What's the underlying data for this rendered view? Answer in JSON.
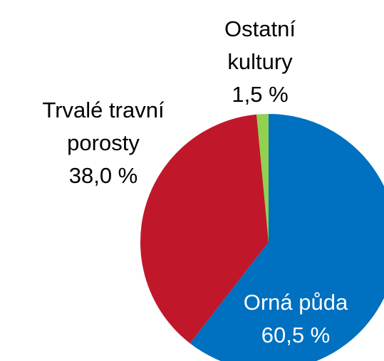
{
  "chart_data": {
    "type": "pie",
    "categories": [
      "Orná půda",
      "Trvalé travní porosty",
      "Ostatní kultury"
    ],
    "values": [
      60.5,
      38.0,
      1.5
    ],
    "value_labels": [
      "60,5 %",
      "38,0 %",
      "1,5 %"
    ],
    "colors": [
      "#0070c0",
      "#c0182a",
      "#92d050"
    ]
  }
}
